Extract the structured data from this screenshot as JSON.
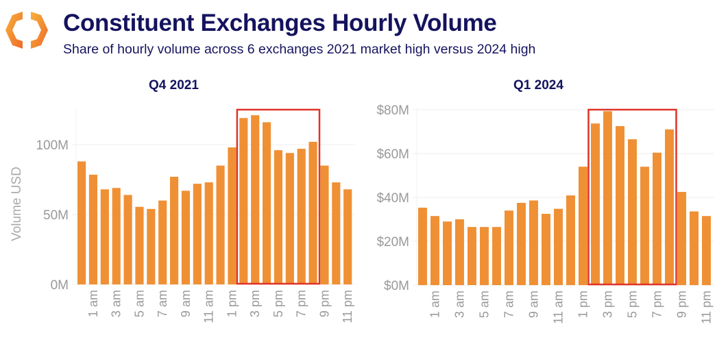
{
  "header": {
    "title": "Constituent Exchanges Hourly Volume",
    "subtitle": "Share of hourly volume across 6 exchanges 2021 market high versus 2024 high",
    "logo_icon": "orange-hexagon-brackets-logo"
  },
  "colors": {
    "bar": "#ef9035",
    "highlight": "#e03327",
    "title": "#15135e",
    "axis_text": "#999999"
  },
  "chart_data": [
    {
      "type": "bar",
      "title": "Q4 2021",
      "ylabel": "Volume USD",
      "xlabel": "",
      "ylim": [
        0,
        125
      ],
      "yticks": [
        0,
        50,
        100
      ],
      "ytick_labels": [
        "0M",
        "50M",
        "100M"
      ],
      "grid": true,
      "categories": [
        "12 am",
        "1 am",
        "2 am",
        "3 am",
        "4 am",
        "5 am",
        "6 am",
        "7 am",
        "8 am",
        "9 am",
        "10 am",
        "11 am",
        "12 pm",
        "1 pm",
        "2 pm",
        "3 pm",
        "4 pm",
        "5 pm",
        "6 pm",
        "7 pm",
        "8 pm",
        "9 pm",
        "10 pm",
        "11 pm"
      ],
      "xtick_labels": [
        "",
        "1 am",
        "",
        "3 am",
        "",
        "5 am",
        "",
        "7 am",
        "",
        "9 am",
        "",
        "11 am",
        "",
        "1 pm",
        "",
        "3 pm",
        "",
        "5 pm",
        "",
        "7 pm",
        "",
        "9 pm",
        "",
        "11 pm"
      ],
      "values": [
        88,
        78.5,
        68,
        69,
        64,
        55.5,
        54,
        60,
        77,
        67,
        72,
        73,
        85,
        98,
        119,
        121,
        116,
        96,
        94,
        97,
        102,
        85,
        73,
        68
      ],
      "highlight_range": [
        "2 pm",
        "8 pm"
      ]
    },
    {
      "type": "bar",
      "title": "Q1 2024",
      "ylabel": "",
      "xlabel": "",
      "ylim": [
        0,
        80
      ],
      "yticks": [
        0,
        20,
        40,
        60,
        80
      ],
      "ytick_labels": [
        "$0M",
        "$20M",
        "$40M",
        "$60M",
        "$80M"
      ],
      "grid": true,
      "categories": [
        "12 am",
        "1 am",
        "2 am",
        "3 am",
        "4 am",
        "5 am",
        "6 am",
        "7 am",
        "8 am",
        "9 am",
        "10 am",
        "11 am",
        "12 pm",
        "1 pm",
        "2 pm",
        "3 pm",
        "4 pm",
        "5 pm",
        "6 pm",
        "7 pm",
        "8 pm",
        "9 pm",
        "10 pm",
        "11 pm"
      ],
      "xtick_labels": [
        "",
        "1 am",
        "",
        "3 am",
        "",
        "5 am",
        "",
        "7 am",
        "",
        "9 am",
        "",
        "11 am",
        "",
        "1 pm",
        "",
        "3 pm",
        "",
        "5 pm",
        "",
        "7 pm",
        "",
        "9 pm",
        "",
        "11 pm"
      ],
      "values": [
        35.3,
        31.5,
        29,
        30,
        26.5,
        26.5,
        26.5,
        34,
        37.5,
        38.6,
        32.5,
        34.8,
        40.9,
        54,
        73.7,
        79.3,
        72.5,
        66.5,
        54,
        60.4,
        71,
        42.5,
        33.6,
        31.5
      ],
      "highlight_range": [
        "2 pm",
        "8 pm"
      ]
    }
  ]
}
